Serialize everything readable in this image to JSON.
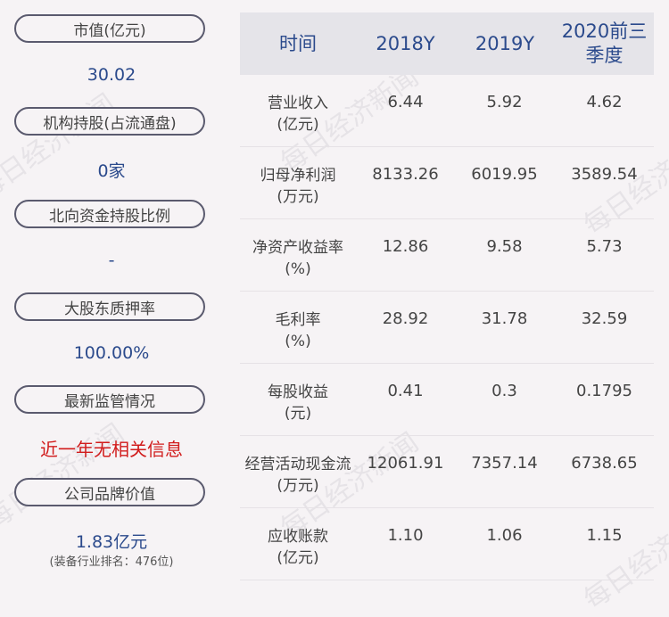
{
  "left_panel": {
    "items": [
      {
        "label": "市值(亿元)",
        "value": "30.02"
      },
      {
        "label": "机构持股(占流通盘)",
        "value": "0家"
      },
      {
        "label": "北向资金持股比例",
        "value": "-"
      },
      {
        "label": "大股东质押率",
        "value": "100.00%"
      },
      {
        "label": "最新监管情况",
        "value": "近一年无相关信息"
      },
      {
        "label": "公司品牌价值",
        "value": "1.83亿元",
        "note": "(装备行业排名：476位)"
      }
    ]
  },
  "table": {
    "headers": [
      "时间",
      "2018Y",
      "2019Y",
      "2020前三季度"
    ],
    "rows": [
      {
        "label": "营业收入(亿元)",
        "line1": "营业收入",
        "line2": "(亿元)",
        "values": [
          "6.44",
          "5.92",
          "4.62"
        ]
      },
      {
        "label": "归母净利润(万元)",
        "line1": "归母净利润",
        "line2": "(万元)",
        "values": [
          "8133.26",
          "6019.95",
          "3589.54"
        ]
      },
      {
        "label": "净资产收益率(%)",
        "line1": "净资产收益率",
        "line2": "(%)",
        "values": [
          "12.86",
          "9.58",
          "5.73"
        ]
      },
      {
        "label": "毛利率(%)",
        "line1": "毛利率",
        "line2": "(%)",
        "values": [
          "28.92",
          "31.78",
          "32.59"
        ]
      },
      {
        "label": "每股收益(元)",
        "line1": "每股收益",
        "line2": "(元)",
        "values": [
          "0.41",
          "0.3",
          "0.1795"
        ]
      },
      {
        "label": "经营活动现金流(万元)",
        "line1": "经营活动现金流",
        "line2": "(万元)",
        "values": [
          "12061.91",
          "7357.14",
          "6738.65"
        ]
      },
      {
        "label": "应收账款(亿元)",
        "line1": "应收账款",
        "line2": "(亿元)",
        "values": [
          "1.10",
          "1.06",
          "1.15"
        ]
      }
    ]
  },
  "watermark": "每日经济新闻",
  "colors": {
    "background": "#f6f3f5",
    "header_bg": "#e5e4e9",
    "accent_blue": "#2b4a8c",
    "alert_red": "#d11c1c",
    "pill_border": "#5a5a6e"
  }
}
